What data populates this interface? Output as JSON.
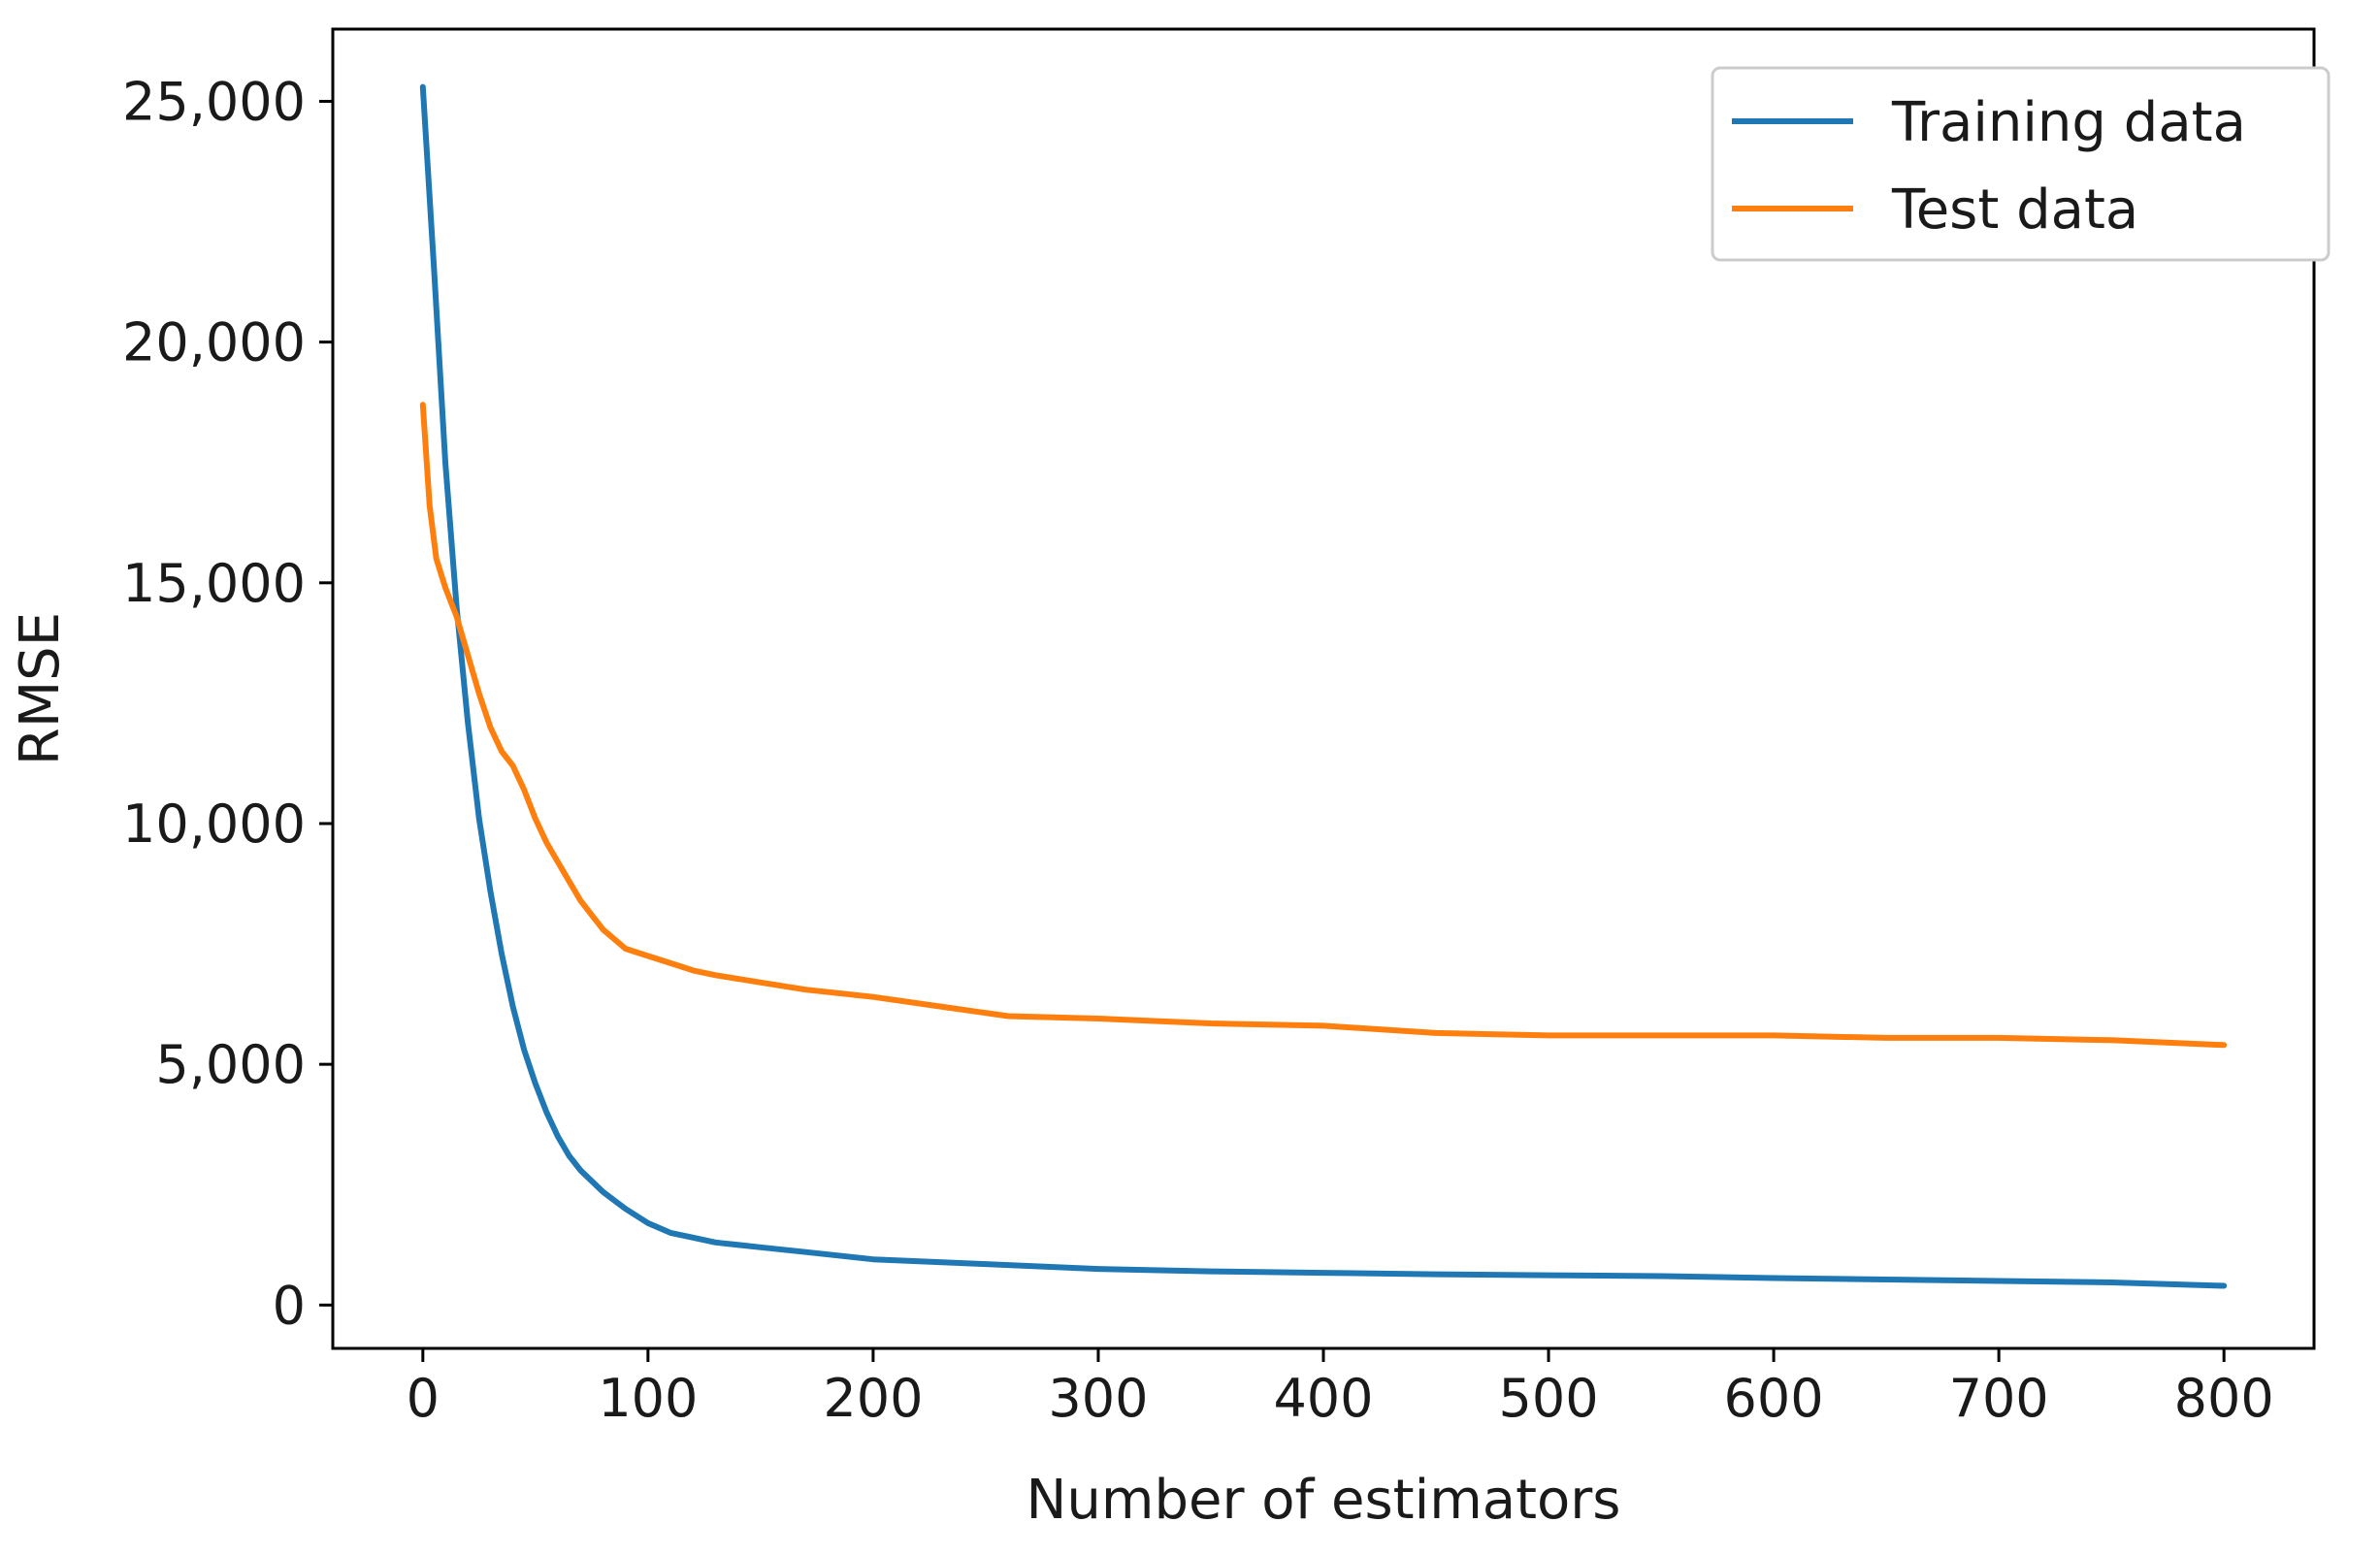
{
  "chart_data": {
    "type": "line",
    "title": "",
    "xlabel": "Number of estimators",
    "ylabel": "RMSE",
    "xlim": [
      -40,
      840
    ],
    "ylim": [
      -900,
      26500
    ],
    "xticks": [
      0,
      100,
      200,
      300,
      400,
      500,
      600,
      700,
      800
    ],
    "xtick_labels": [
      "0",
      "100",
      "200",
      "300",
      "400",
      "500",
      "600",
      "700",
      "800"
    ],
    "yticks": [
      0,
      5000,
      10000,
      15000,
      20000,
      25000
    ],
    "ytick_labels": [
      "0",
      "5,000",
      "10,000",
      "15,000",
      "20,000",
      "25,000"
    ],
    "grid": false,
    "legend_position": "top-right",
    "series": [
      {
        "name": "Training data",
        "color": "#1f77b4",
        "x": [
          0,
          5,
          10,
          15,
          20,
          25,
          30,
          35,
          40,
          45,
          50,
          55,
          60,
          65,
          70,
          80,
          90,
          100,
          110,
          120,
          130,
          150,
          170,
          180,
          200,
          250,
          300,
          350,
          400,
          450,
          500,
          550,
          600,
          650,
          700,
          750,
          800
        ],
        "values": [
          25300,
          21500,
          17500,
          14500,
          12100,
          10100,
          8600,
          7300,
          6200,
          5300,
          4600,
          4000,
          3500,
          3100,
          2800,
          2350,
          2000,
          1700,
          1500,
          1400,
          1300,
          1200,
          1100,
          1050,
          950,
          850,
          750,
          700,
          670,
          640,
          620,
          600,
          560,
          530,
          500,
          470,
          400
        ]
      },
      {
        "name": "Test data",
        "color": "#ff7f0e",
        "x": [
          0,
          3,
          6,
          10,
          15,
          20,
          25,
          30,
          35,
          40,
          45,
          50,
          55,
          60,
          65,
          70,
          75,
          80,
          90,
          100,
          110,
          120,
          130,
          150,
          170,
          200,
          230,
          260,
          300,
          350,
          400,
          450,
          500,
          550,
          600,
          650,
          700,
          750,
          800
        ],
        "values": [
          18700,
          16600,
          15500,
          14900,
          14300,
          13500,
          12700,
          12000,
          11500,
          11200,
          10700,
          10100,
          9600,
          9200,
          8800,
          8400,
          8100,
          7800,
          7400,
          7250,
          7100,
          6950,
          6850,
          6700,
          6550,
          6400,
          6200,
          6000,
          5950,
          5850,
          5800,
          5650,
          5600,
          5600,
          5600,
          5550,
          5550,
          5500,
          5400
        ]
      }
    ]
  }
}
